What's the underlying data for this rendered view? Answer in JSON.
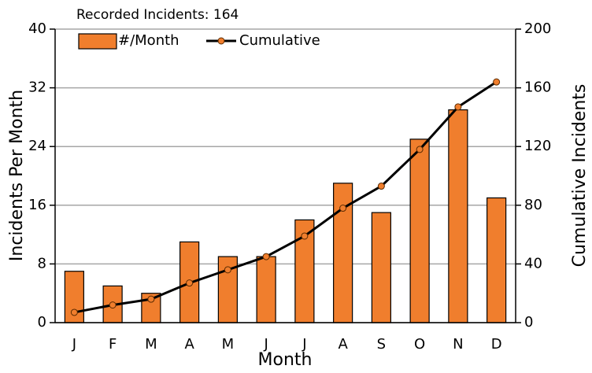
{
  "chart_data": {
    "type": "bar",
    "title": "Recorded Incidents: 164",
    "x_label": "Month",
    "y_label": "Incidents Per Month",
    "y2_label": "Cumulative Incidents",
    "categories": [
      "J",
      "F",
      "M",
      "A",
      "M",
      "J",
      "J",
      "A",
      "S",
      "O",
      "N",
      "D"
    ],
    "series": [
      {
        "name": "#/Month",
        "type": "bar",
        "color": "#f07e2d",
        "values": [
          7,
          5,
          4,
          11,
          9,
          9,
          14,
          19,
          15,
          25,
          29,
          17
        ]
      },
      {
        "name": "Cumulative",
        "type": "line",
        "axis": "y2",
        "color": "#000000",
        "marker_color": "#f07e2d",
        "values": [
          7,
          12,
          16,
          27,
          36,
          45,
          59,
          78,
          93,
          118,
          147,
          164
        ]
      }
    ],
    "ylim": [
      0,
      40
    ],
    "yticks": [
      0,
      8,
      16,
      24,
      32,
      40
    ],
    "y2lim": [
      0,
      200
    ],
    "y2ticks": [
      0,
      40,
      80,
      120,
      160,
      200
    ],
    "grid": true,
    "legend": "top-left"
  }
}
